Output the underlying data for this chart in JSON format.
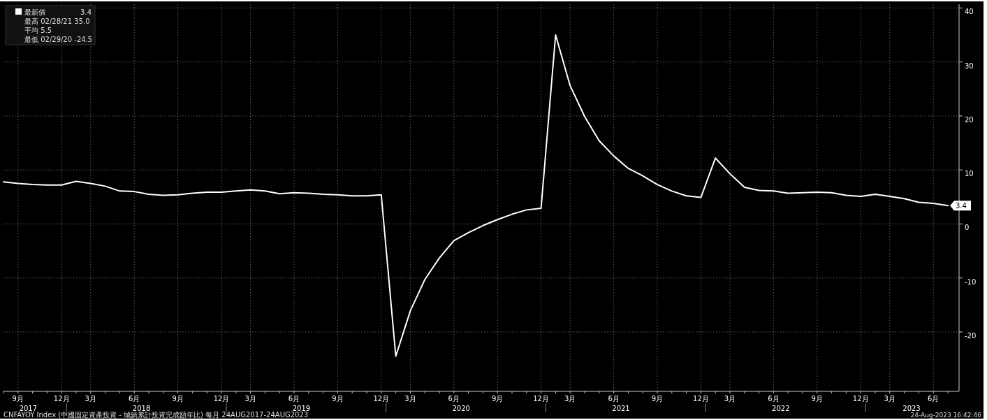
{
  "chart_data": {
    "type": "line",
    "categories": [
      null,
      "9月",
      null,
      null,
      "12月",
      null,
      "3月",
      null,
      null,
      "6月",
      null,
      null,
      "9月",
      null,
      null,
      "12月",
      null,
      "3月",
      null,
      null,
      "6月",
      null,
      null,
      "9月",
      null,
      null,
      "12月",
      null,
      "3月",
      null,
      null,
      "6月",
      null,
      null,
      "9月",
      null,
      null,
      "12月",
      null,
      "3月",
      null,
      null,
      "6月",
      null,
      null,
      "9月",
      null,
      null,
      "12月",
      null,
      "3月",
      null,
      null,
      "6月",
      null,
      null,
      "9月",
      null,
      null,
      "12月",
      null,
      "3月",
      null,
      null,
      "6月",
      null
    ],
    "series": [
      {
        "name": "最新價",
        "color": "#ffffff",
        "values": [
          7.8,
          7.5,
          7.3,
          7.2,
          7.2,
          7.9,
          7.5,
          7.0,
          6.1,
          6.0,
          5.5,
          5.3,
          5.4,
          5.7,
          5.9,
          5.9,
          6.1,
          6.3,
          6.1,
          5.6,
          5.8,
          5.7,
          5.5,
          5.4,
          5.2,
          5.2,
          5.4,
          -24.5,
          -16.1,
          -10.3,
          -6.3,
          -3.1,
          -1.6,
          -0.3,
          0.8,
          1.8,
          2.6,
          2.9,
          35.0,
          25.6,
          19.9,
          15.4,
          12.6,
          10.3,
          8.9,
          7.3,
          6.1,
          5.2,
          4.9,
          12.2,
          9.3,
          6.8,
          6.2,
          6.1,
          5.7,
          5.8,
          5.9,
          5.8,
          5.3,
          5.1,
          5.5,
          5.1,
          4.7,
          4.0,
          3.8,
          3.4
        ],
        "value_labels": [
          null,
          null,
          null,
          null,
          null,
          null,
          null,
          null,
          null,
          null,
          null,
          null,
          null,
          null,
          null,
          null,
          null,
          null,
          null,
          null,
          null,
          null,
          null,
          null,
          null,
          null,
          null,
          null,
          null,
          null,
          null,
          null,
          null,
          null,
          null,
          null,
          null,
          null,
          null,
          null,
          null,
          null,
          null,
          null,
          null,
          null,
          null,
          null,
          null,
          null,
          null,
          null,
          null,
          null,
          null,
          null,
          null,
          null,
          null,
          null,
          null,
          null,
          null,
          null,
          null,
          "3.4"
        ]
      }
    ],
    "ylim": [
      -31,
      40.7
    ],
    "yticks": [
      -20,
      -10,
      0,
      10,
      20,
      30,
      40
    ],
    "grid": true,
    "legend": "top left",
    "marker": "none",
    "line_style": "solid",
    "annotations": [
      "3.4",
      "最高 02/28/21 35.0",
      "平均 5.5",
      "最低 02/29/20 -24.5",
      "2017",
      "2018",
      "2019",
      "2020",
      "2021",
      "2022",
      "2023",
      "CNFAYOY Index (中國固定資產投資 - 城鎮累計投資完成額年比) 每月 24AUG2017-24AUG2023",
      "24-Aug-2023 16:42:46"
    ]
  }
}
